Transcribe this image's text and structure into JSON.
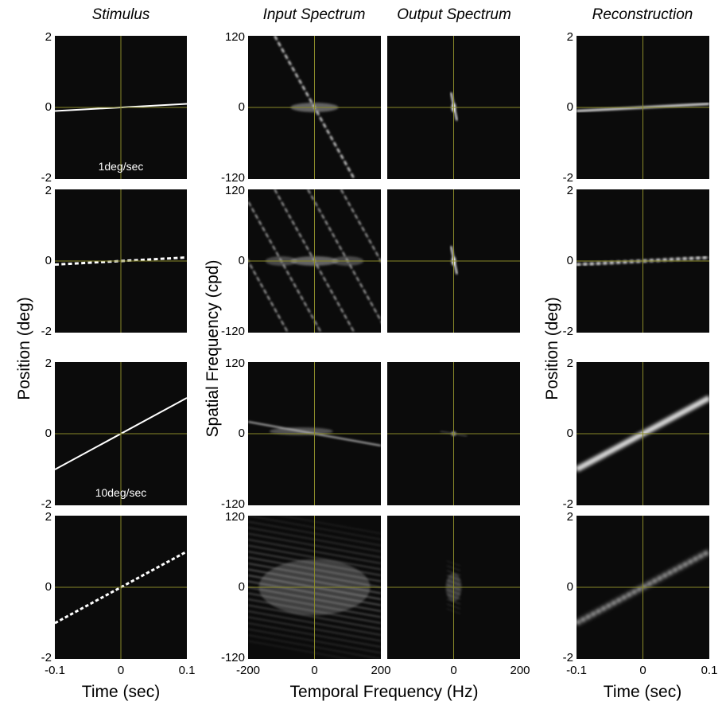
{
  "titles": {
    "stimulus": "Stimulus",
    "input_spectrum": "Input Spectrum",
    "output_spectrum": "Output Spectrum",
    "reconstruction": "Reconstruction"
  },
  "axes": {
    "position_label": "Position (deg)",
    "spatial_freq_label": "Spatial Frequency (cpd)",
    "time_label": "Time (sec)",
    "temporal_freq_label": "Temporal Frequency (Hz)",
    "position_ticks": [
      "2",
      "0",
      "-2"
    ],
    "spatial_freq_ticks": [
      "120",
      "0",
      "-120"
    ],
    "time_ticks": [
      "-0.1",
      "0",
      "0.1"
    ],
    "temporal_freq_ticks": [
      "-200",
      "0",
      "200"
    ]
  },
  "annotations": {
    "speed_slow": "1deg/sec",
    "speed_fast": "10deg/sec"
  },
  "colors": {
    "panel_bg": "#0b0b0b",
    "crosshair": "#8a8a2a",
    "stimulus": "#ffffff"
  },
  "rows": [
    {
      "speed_deg_per_sec": 1,
      "motion": "smooth"
    },
    {
      "speed_deg_per_sec": 1,
      "motion": "sampled"
    },
    {
      "speed_deg_per_sec": 10,
      "motion": "smooth"
    },
    {
      "speed_deg_per_sec": 10,
      "motion": "sampled"
    }
  ]
}
